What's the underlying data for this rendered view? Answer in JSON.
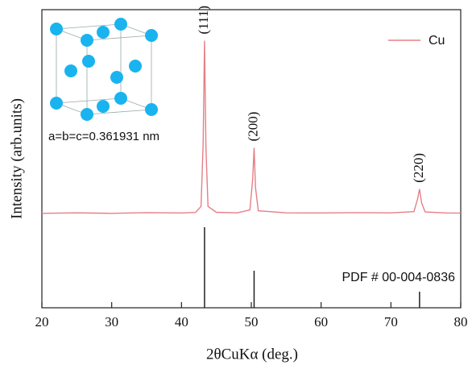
{
  "chart_data": [
    {
      "type": "line",
      "xlabel": "2θCuKα (deg.)",
      "ylabel": "Intensity (arb.units)",
      "inset_label": "a=b=c=0.361931 nm",
      "annotations": [
        "(111)",
        "(200)",
        "(220)"
      ],
      "legend": "upper right",
      "xlim": [
        20,
        80
      ],
      "xticks": [
        20,
        30,
        40,
        50,
        60,
        70,
        80
      ],
      "ylim": [
        -1.5,
        118
      ],
      "series": [
        {
          "name": "Cu",
          "color": "#e57f86",
          "x": [
            20,
            25,
            30,
            35,
            40,
            42,
            42.8,
            43.1,
            43.3,
            43.5,
            43.8,
            45,
            48,
            49.8,
            50.2,
            50.4,
            50.6,
            51,
            55,
            60,
            65,
            70,
            73.3,
            73.8,
            74.1,
            74.4,
            74.9,
            78,
            80
          ],
          "values": [
            0,
            0.3,
            0,
            0.4,
            0.2,
            0.5,
            4,
            40,
            100,
            38,
            4,
            0.6,
            0.3,
            2,
            20,
            38,
            15,
            1.5,
            0.3,
            0.2,
            0.4,
            0.3,
            1,
            8,
            14,
            6,
            0.8,
            0.2,
            0.1
          ]
        }
      ]
    },
    {
      "type": "stick",
      "label": "PDF # 00-004-0836",
      "color": "#222222",
      "ylim": [
        0,
        114
      ],
      "x": [
        43.3,
        50.4,
        74.1
      ],
      "values": [
        100,
        46,
        20
      ]
    }
  ]
}
